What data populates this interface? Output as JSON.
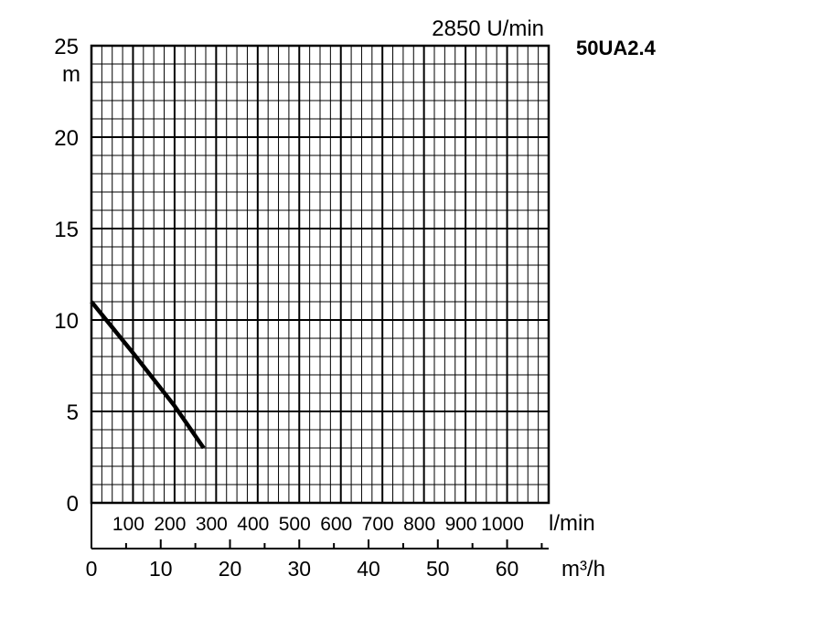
{
  "chart_data": {
    "type": "line",
    "title": "50UA2.4",
    "speed_label": "2850 U/min",
    "ylabel": "m",
    "xlabel_lmin": "l/min",
    "xlabel_m3h": "m³/h",
    "ylim": [
      0,
      25
    ],
    "xlim_lmin": [
      0,
      1100
    ],
    "xlim_m3h": [
      0,
      66
    ],
    "y_ticks": [
      "0",
      "5",
      "10",
      "15",
      "20",
      "25"
    ],
    "lmin_ticks": [
      "100",
      "200",
      "300",
      "400",
      "500",
      "600",
      "700",
      "800",
      "900",
      "1000"
    ],
    "m3h_ticks": [
      "0",
      "10",
      "20",
      "30",
      "40",
      "50",
      "60"
    ],
    "grid": true,
    "series": [
      {
        "x_lmin": [
          0,
          100,
          200,
          270
        ],
        "y": [
          11,
          8.2,
          5.3,
          3
        ]
      }
    ]
  }
}
